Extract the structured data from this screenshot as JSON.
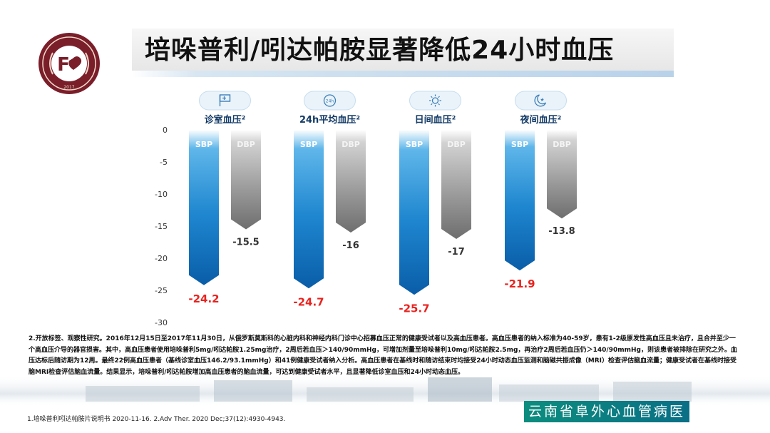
{
  "title": "培哚普利/吲达帕胺显著降低24小时血压",
  "chart_data": {
    "type": "bar",
    "ylim": [
      -30,
      0
    ],
    "yticks": [
      0,
      -5,
      -10,
      -15,
      -20,
      -25,
      -30
    ],
    "groups": [
      {
        "label": "诊室血压²",
        "icon": "flag-icon",
        "values": {
          "SBP": -24.2,
          "DBP": -15.5
        }
      },
      {
        "label": "24h平均血压²",
        "icon": "24h-clock-icon",
        "icon_text": "24h",
        "values": {
          "SBP": -24.7,
          "DBP": -16
        }
      },
      {
        "label": "日间血压²",
        "icon": "sun-icon",
        "values": {
          "SBP": -25.7,
          "DBP": -17
        }
      },
      {
        "label": "夜间血压²",
        "icon": "moon-star-icon",
        "values": {
          "SBP": -21.9,
          "DBP": -13.8
        }
      }
    ],
    "series": [
      {
        "name": "SBP",
        "color": "#1a7cc6",
        "label_color": "#e8231f"
      },
      {
        "name": "DBP",
        "color": "#8c8c8c",
        "label_color": "#333333"
      }
    ]
  },
  "footnote": "2.开放标签、观察性研究。2016年12月15日至2017年11月30日，从俄罗斯莫斯科的心脏内科和神经内科门诊中心招募血压正常的健康受试者以及高血压患者。高血压患者的纳入标准为40-59岁，患有1-2级原发性高血压且未治疗，且合并至少一个高血压介导的器官损害。其中，高血压患者使用培哚普利5mg/吲达帕胺1.25mg治疗，2周后若血压＞140/90mmHg，可增加剂量至培哚普利10mg/吲达帕胺2.5mg，再治疗2周后若血压仍＞140/90mmHg，则该患者被排除在研究之外。血压达标后随访期为12周。最终22例高血压患者（基线诊室血压146.2/93.1mmHg）和41例健康受试者纳入分析。高血压患者在基线时和随访结束时均接受24小时动态血压监测和脑磁共振成像（MRI）检查评估脑血流量；健康受试者在基线时接受脑MRI检查评估脑血流量。结果显示，培哚普利/吲达帕胺增加高血压患者的脑血流量，可达到健康受试者水平，且显著降低诊室血压和24小时动态血压。",
  "references": "1.培哚普利吲达帕胺片说明书 2020-11-16.   2.Adv Ther. 2020 Dec;37(12):4930-4943.",
  "hospital_name": "云南省阜外心血管病医院",
  "logo": {
    "center_text": "F",
    "year": "2017"
  }
}
